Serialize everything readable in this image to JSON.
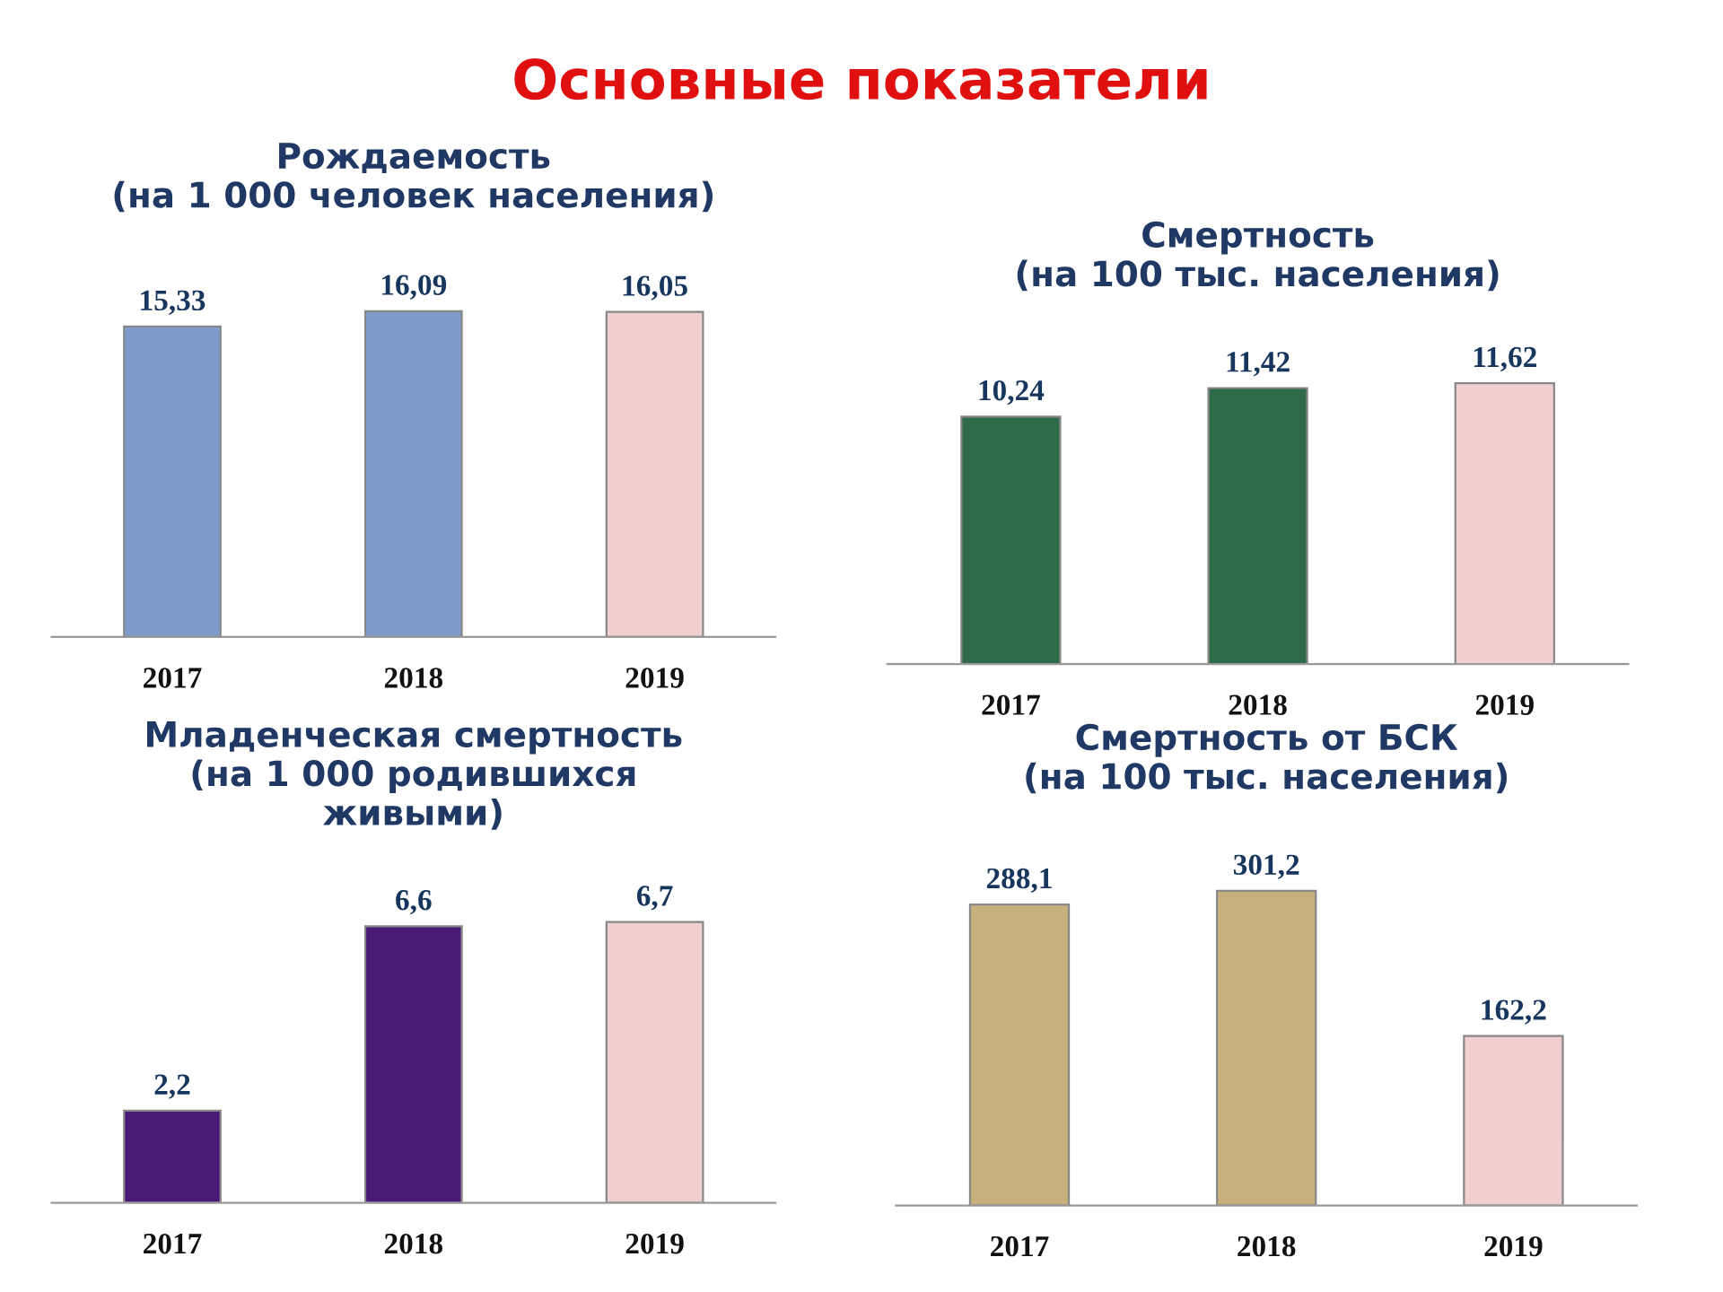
{
  "chart_data": [
    {
      "type": "other",
      "title": "Основные показатели"
    },
    {
      "type": "bar",
      "title": "Рождаемость\n(на 1 000 человек населения)",
      "categories": [
        "2017",
        "2018",
        "2019"
      ],
      "values": [
        15.33,
        16.09,
        16.05
      ],
      "value_labels": [
        "15,33",
        "16,09",
        "16,05"
      ],
      "colors": [
        "#7f9bcc",
        "#7f9bcc",
        "#f2cfcf"
      ]
    },
    {
      "type": "bar",
      "title": "Смертность\n(на 100 тыс. населения)",
      "categories": [
        "2017",
        "2018",
        "2019"
      ],
      "values": [
        10.24,
        11.42,
        11.62
      ],
      "value_labels": [
        "10,24",
        "11,42",
        "11,62"
      ],
      "colors": [
        "#2f6b48",
        "#2f6b48",
        "#f2cfcf"
      ]
    },
    {
      "type": "bar",
      "title": "Младенческая смертность\n(на 1 000 родившихся\nживыми)",
      "categories": [
        "2017",
        "2018",
        "2019"
      ],
      "values": [
        2.2,
        6.6,
        6.7
      ],
      "value_labels": [
        "2,2",
        "6,6",
        "6,7"
      ],
      "colors": [
        "#4a1a78",
        "#4a1a78",
        "#f2cfcf"
      ]
    },
    {
      "type": "bar",
      "title": "Смертность от БСК\n(на 100 тыс. населения)",
      "categories": [
        "2017",
        "2018",
        "2019"
      ],
      "values": [
        288.1,
        301.2,
        162.2
      ],
      "value_labels": [
        "288,1",
        "301,2",
        "162,2"
      ],
      "colors": [
        "#c8b07c",
        "#c8b07c",
        "#f2cfcf"
      ]
    }
  ]
}
